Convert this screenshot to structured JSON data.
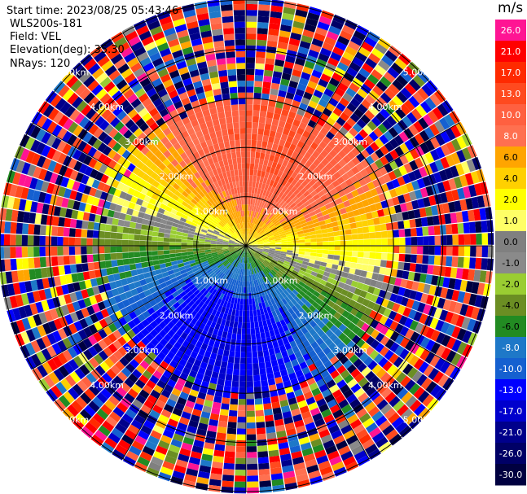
{
  "header": {
    "start_time": "Start time: 2023/08/25 05:43:46",
    "site": "WLS200s-181",
    "field": "Field: VEL",
    "elevation": "Elevation(deg): 35.30",
    "nrays": "NRays: 120"
  },
  "colorbar": {
    "units": "m/s",
    "levels": [
      {
        "label": "26.0",
        "color": "#ff1493"
      },
      {
        "label": "21.0",
        "color": "#ff0000"
      },
      {
        "label": "17.0",
        "color": "#ff2a00"
      },
      {
        "label": "13.0",
        "color": "#ff4a1f"
      },
      {
        "label": "10.0",
        "color": "#ff6040"
      },
      {
        "label": "8.0",
        "color": "#ff7050"
      },
      {
        "label": "6.0",
        "color": "#ffa500"
      },
      {
        "label": "4.0",
        "color": "#ffd000"
      },
      {
        "label": "2.0",
        "color": "#ffff00"
      },
      {
        "label": "1.0",
        "color": "#ffff66"
      },
      {
        "label": "0.0",
        "color": "#808080"
      },
      {
        "label": "-1.0",
        "color": "#8a8a8a"
      },
      {
        "label": "-2.0",
        "color": "#9acd32"
      },
      {
        "label": "-4.0",
        "color": "#6b8e23"
      },
      {
        "label": "-6.0",
        "color": "#228b22"
      },
      {
        "label": "-8.0",
        "color": "#1e78c8"
      },
      {
        "label": "-10.0",
        "color": "#1560d0"
      },
      {
        "label": "-13.0",
        "color": "#0000ff"
      },
      {
        "label": "-17.0",
        "color": "#0000cd"
      },
      {
        "label": "-21.0",
        "color": "#00008b"
      },
      {
        "label": "-26.0",
        "color": "#000066"
      },
      {
        "label": "-30.0",
        "color": "#000040"
      }
    ]
  },
  "chart_data": {
    "type": "heatmap",
    "projection": "polar-ppi",
    "field": "VEL",
    "nrays": 120,
    "rings": [
      {
        "range_km": 1.0,
        "label": "1.00km"
      },
      {
        "range_km": 2.0,
        "label": "2.00km"
      },
      {
        "range_km": 3.0,
        "label": "3.00km"
      },
      {
        "range_km": 4.0,
        "label": "4.00km"
      },
      {
        "range_km": 5.0,
        "label": "5.00km"
      }
    ],
    "max_range_km": 5.0,
    "valid_range_km": 3.0,
    "wind_direction_deg": 15,
    "max_velocity_ms": 13.0
  }
}
